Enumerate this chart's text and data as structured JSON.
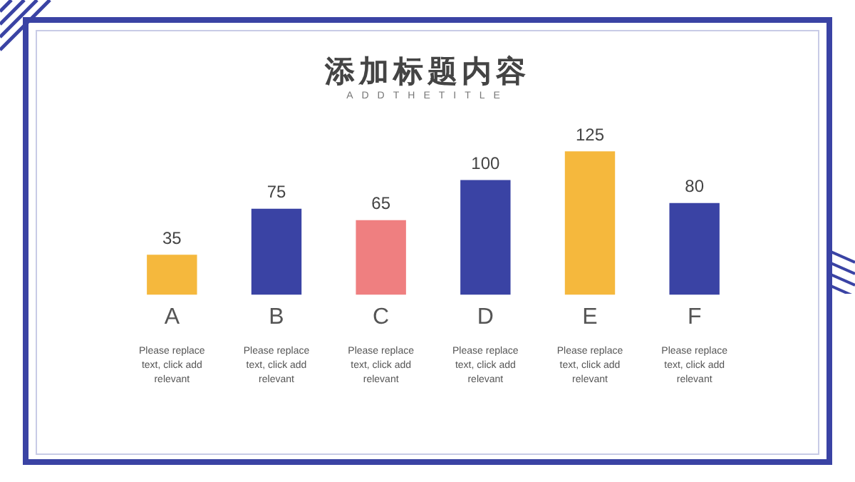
{
  "chart_data": {
    "type": "bar",
    "title": "添加标题内容",
    "subtitle": "ADDTHETITLE",
    "categories": [
      "A",
      "B",
      "C",
      "D",
      "E",
      "F"
    ],
    "values": [
      35,
      75,
      65,
      100,
      125,
      80
    ],
    "colors": [
      "#f5b83d",
      "#3a43a4",
      "#ef7f80",
      "#3a43a4",
      "#f5b83d",
      "#3a43a4"
    ],
    "data_labels": true,
    "grid": false,
    "legend": false,
    "annotations": [
      "Please replace text, click add relevant",
      "Please replace text, click add relevant",
      "Please replace text, click add relevant",
      "Please replace text, click add relevant",
      "Please replace text, click add relevant",
      "Please replace text, click add relevant"
    ]
  }
}
